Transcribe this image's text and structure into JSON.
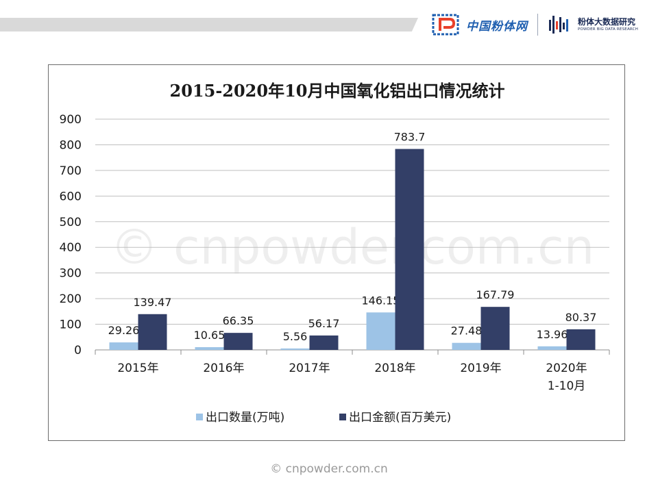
{
  "brand": {
    "name": "中国粉体网",
    "secondary_name": "粉体大数据研究",
    "secondary_sub": "POWDER BIG DATA RESEARCH"
  },
  "watermark": "© cnpowder.com.cn",
  "footer": "© cnpowder.com.cn",
  "colors": {
    "series1": "#9dc3e6",
    "series2": "#333f67"
  },
  "chart_data": {
    "type": "bar",
    "title": "2015-2020年10月中国氧化铝出口情况统计",
    "categories": [
      "2015年",
      "2016年",
      "2017年",
      "2018年",
      "2019年",
      "2020年\n1-10月"
    ],
    "series": [
      {
        "name": "出口数量(万吨)",
        "values": [
          29.26,
          10.65,
          5.56,
          146.15,
          27.48,
          13.96
        ],
        "labels": [
          "29.26",
          "10.65",
          "5.56",
          "146.15",
          "27.48",
          "13.96"
        ],
        "color": "#9dc3e6"
      },
      {
        "name": "出口金额(百万美元)",
        "values": [
          139.47,
          66.35,
          56.17,
          783.7,
          167.79,
          80.37
        ],
        "labels": [
          "139.47",
          "66.35",
          "56.17",
          "783.7",
          "167.79",
          "80.37"
        ],
        "color": "#333f67"
      }
    ],
    "ylim": [
      0,
      900
    ],
    "yticks": [
      0,
      100,
      200,
      300,
      400,
      500,
      600,
      700,
      800,
      900
    ],
    "grid": true,
    "legend": "bottom"
  }
}
